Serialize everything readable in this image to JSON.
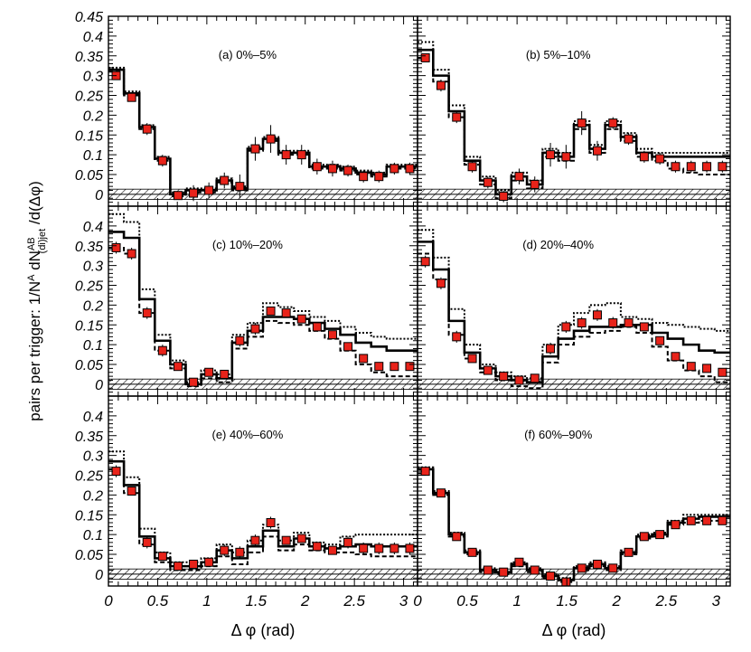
{
  "figure": {
    "ylabel_prefix": "pairs per trigger: 1/N",
    "ylabel_mid": " dN",
    "ylabel_suffix": " /d(Δφ)",
    "ylabel_sup_a": "A",
    "ylabel_sup_ab": "AB",
    "ylabel_sub": "(di)jet",
    "xlabel": "Δ φ (rad)",
    "colors": {
      "marker": "#e8231a",
      "line": "#000000",
      "band": "#000000"
    }
  },
  "chart_data": [
    {
      "type": "scatter",
      "title": "(a) 0%–5%",
      "xlim": [
        0,
        3.1416
      ],
      "ylim": [
        -0.03,
        0.45
      ],
      "grid": false,
      "xticks": [
        "0",
        "0.5",
        "1",
        "1.5",
        "2",
        "2.5",
        "3"
      ],
      "yticks": [
        "0",
        "0.05",
        "0.1",
        "0.15",
        "0.2",
        "0.25",
        "0.3",
        "0.35",
        "0.4",
        "0.45"
      ],
      "x": [
        0.0785,
        0.2356,
        0.3927,
        0.5498,
        0.7069,
        0.864,
        1.0211,
        1.1781,
        1.3352,
        1.4923,
        1.6494,
        1.8065,
        1.9635,
        2.1206,
        2.2777,
        2.4348,
        2.5919,
        2.749,
        2.9061,
        3.0631
      ],
      "data": [
        0.3,
        0.245,
        0.165,
        0.085,
        -0.003,
        0.003,
        0.01,
        0.035,
        0.02,
        0.115,
        0.14,
        0.1,
        0.1,
        0.07,
        0.065,
        0.06,
        0.045,
        0.045,
        0.065,
        0.065
      ],
      "err": [
        0.01,
        0.01,
        0.015,
        0.015,
        0.01,
        0.02,
        0.02,
        0.02,
        0.03,
        0.03,
        0.035,
        0.025,
        0.025,
        0.02,
        0.02,
        0.015,
        0.015,
        0.015,
        0.015,
        0.015
      ],
      "model": [
        0.315,
        0.255,
        0.17,
        0.09,
        0.0,
        0.01,
        0.01,
        0.035,
        0.015,
        0.115,
        0.14,
        0.105,
        0.105,
        0.07,
        0.07,
        0.065,
        0.055,
        0.05,
        0.07,
        0.07
      ],
      "band_hi": [
        0.32,
        0.26,
        0.175,
        0.095,
        0.005,
        0.015,
        0.015,
        0.04,
        0.02,
        0.12,
        0.145,
        0.11,
        0.11,
        0.075,
        0.075,
        0.07,
        0.06,
        0.055,
        0.075,
        0.075
      ],
      "band_lo": [
        0.31,
        0.25,
        0.165,
        0.085,
        -0.005,
        0.005,
        0.005,
        0.03,
        0.01,
        0.11,
        0.135,
        0.1,
        0.1,
        0.065,
        0.065,
        0.06,
        0.05,
        0.045,
        0.065,
        0.065
      ]
    },
    {
      "type": "scatter",
      "title": "(b) 5%–10%",
      "xlim": [
        0,
        3.1416
      ],
      "ylim": [
        -0.03,
        0.45
      ],
      "grid": false,
      "xticks": [
        "0",
        "0.5",
        "1",
        "1.5",
        "2",
        "2.5",
        "3"
      ],
      "yticks": [],
      "x": [
        0.0785,
        0.2356,
        0.3927,
        0.5498,
        0.7069,
        0.864,
        1.0211,
        1.1781,
        1.3352,
        1.4923,
        1.6494,
        1.8065,
        1.9635,
        2.1206,
        2.2777,
        2.4348,
        2.5919,
        2.749,
        2.9061,
        3.0631
      ],
      "data": [
        0.345,
        0.275,
        0.195,
        0.07,
        0.03,
        -0.005,
        0.045,
        0.025,
        0.1,
        0.095,
        0.18,
        0.11,
        0.18,
        0.14,
        0.095,
        0.09,
        0.07,
        0.07,
        0.07,
        0.07
      ],
      "err": [
        0.01,
        0.015,
        0.015,
        0.015,
        0.015,
        0.015,
        0.02,
        0.02,
        0.03,
        0.03,
        0.03,
        0.025,
        0.015,
        0.015,
        0.015,
        0.015,
        0.015,
        0.015,
        0.015,
        0.015
      ],
      "model": [
        0.365,
        0.3,
        0.21,
        0.085,
        0.035,
        0.0,
        0.045,
        0.025,
        0.105,
        0.095,
        0.175,
        0.115,
        0.175,
        0.145,
        0.105,
        0.095,
        0.095,
        0.095,
        0.095,
        0.095
      ],
      "band_hi": [
        0.385,
        0.315,
        0.225,
        0.095,
        0.045,
        0.01,
        0.055,
        0.035,
        0.115,
        0.105,
        0.185,
        0.125,
        0.185,
        0.155,
        0.115,
        0.105,
        0.105,
        0.105,
        0.105,
        0.105
      ],
      "band_lo": [
        0.345,
        0.285,
        0.195,
        0.075,
        0.025,
        -0.01,
        0.035,
        0.015,
        0.095,
        0.085,
        0.165,
        0.105,
        0.165,
        0.135,
        0.095,
        0.085,
        0.065,
        0.055,
        0.05,
        0.05
      ]
    },
    {
      "type": "scatter",
      "title": "(c) 10%–20%",
      "xlim": [
        0,
        3.1416
      ],
      "ylim": [
        -0.03,
        0.45
      ],
      "grid": false,
      "xticks": [
        "0",
        "0.5",
        "1",
        "1.5",
        "2",
        "2.5",
        "3"
      ],
      "yticks": [
        "0",
        "0.05",
        "0.1",
        "0.15",
        "0.2",
        "0.25",
        "0.3",
        "0.35",
        "0.4"
      ],
      "x": [
        0.0785,
        0.2356,
        0.3927,
        0.5498,
        0.7069,
        0.864,
        1.0211,
        1.1781,
        1.3352,
        1.4923,
        1.6494,
        1.8065,
        1.9635,
        2.1206,
        2.2777,
        2.4348,
        2.5919,
        2.749,
        2.9061,
        3.0631
      ],
      "data": [
        0.345,
        0.33,
        0.18,
        0.085,
        0.045,
        0.005,
        0.03,
        0.025,
        0.11,
        0.14,
        0.185,
        0.18,
        0.165,
        0.145,
        0.125,
        0.095,
        0.065,
        0.045,
        0.045,
        0.045
      ],
      "err": [
        0.015,
        0.015,
        0.015,
        0.015,
        0.01,
        0.01,
        0.01,
        0.01,
        0.015,
        0.015,
        0.01,
        0.01,
        0.01,
        0.01,
        0.01,
        0.01,
        0.01,
        0.01,
        0.01,
        0.01
      ],
      "model": [
        0.385,
        0.37,
        0.215,
        0.11,
        0.05,
        0.0,
        0.025,
        0.015,
        0.105,
        0.135,
        0.17,
        0.17,
        0.165,
        0.155,
        0.14,
        0.125,
        0.105,
        0.095,
        0.085,
        0.085
      ],
      "band_hi": [
        0.43,
        0.41,
        0.24,
        0.125,
        0.06,
        0.005,
        0.035,
        0.025,
        0.125,
        0.155,
        0.205,
        0.195,
        0.185,
        0.17,
        0.16,
        0.145,
        0.13,
        0.12,
        0.115,
        0.115
      ],
      "band_lo": [
        0.345,
        0.33,
        0.18,
        0.085,
        0.04,
        -0.005,
        0.015,
        0.005,
        0.09,
        0.12,
        0.16,
        0.155,
        0.15,
        0.135,
        0.115,
        0.085,
        0.05,
        0.03,
        0.02,
        0.02
      ]
    },
    {
      "type": "scatter",
      "title": "(d) 20%–40%",
      "xlim": [
        0,
        3.1416
      ],
      "ylim": [
        -0.03,
        0.45
      ],
      "grid": false,
      "xticks": [
        "0",
        "0.5",
        "1",
        "1.5",
        "2",
        "2.5",
        "3"
      ],
      "yticks": [],
      "x": [
        0.0785,
        0.2356,
        0.3927,
        0.5498,
        0.7069,
        0.864,
        1.0211,
        1.1781,
        1.3352,
        1.4923,
        1.6494,
        1.8065,
        1.9635,
        2.1206,
        2.2777,
        2.4348,
        2.5919,
        2.749,
        2.9061,
        3.0631
      ],
      "data": [
        0.31,
        0.255,
        0.12,
        0.065,
        0.035,
        0.02,
        0.01,
        0.015,
        0.09,
        0.145,
        0.155,
        0.175,
        0.155,
        0.155,
        0.145,
        0.11,
        0.07,
        0.045,
        0.04,
        0.03
      ],
      "err": [
        0.015,
        0.015,
        0.015,
        0.01,
        0.01,
        0.01,
        0.01,
        0.01,
        0.015,
        0.015,
        0.015,
        0.015,
        0.015,
        0.01,
        0.01,
        0.01,
        0.01,
        0.01,
        0.01,
        0.01
      ],
      "model": [
        0.36,
        0.29,
        0.16,
        0.08,
        0.04,
        0.02,
        0.01,
        0.005,
        0.07,
        0.115,
        0.135,
        0.145,
        0.145,
        0.15,
        0.15,
        0.13,
        0.115,
        0.1,
        0.085,
        0.08
      ],
      "band_hi": [
        0.39,
        0.32,
        0.19,
        0.1,
        0.05,
        0.03,
        0.02,
        0.015,
        0.1,
        0.15,
        0.18,
        0.2,
        0.205,
        0.17,
        0.165,
        0.155,
        0.15,
        0.145,
        0.14,
        0.135
      ],
      "band_lo": [
        0.33,
        0.265,
        0.125,
        0.065,
        0.03,
        0.01,
        -0.005,
        -0.01,
        0.055,
        0.1,
        0.12,
        0.13,
        0.135,
        0.145,
        0.13,
        0.095,
        0.06,
        0.035,
        0.02,
        0.005
      ]
    },
    {
      "type": "scatter",
      "title": "(e) 40%–60%",
      "xlim": [
        0,
        3.1416
      ],
      "ylim": [
        -0.03,
        0.45
      ],
      "grid": false,
      "xticks": [
        "0",
        "0.5",
        "1",
        "1.5",
        "2",
        "2.5",
        "3"
      ],
      "yticks": [
        "0",
        "0.05",
        "0.1",
        "0.15",
        "0.2",
        "0.25",
        "0.3",
        "0.35",
        "0.4"
      ],
      "x": [
        0.0785,
        0.2356,
        0.3927,
        0.5498,
        0.7069,
        0.864,
        1.0211,
        1.1781,
        1.3352,
        1.4923,
        1.6494,
        1.8065,
        1.9635,
        2.1206,
        2.2777,
        2.4348,
        2.5919,
        2.749,
        2.9061,
        3.0631
      ],
      "data": [
        0.26,
        0.21,
        0.08,
        0.045,
        0.02,
        0.025,
        0.03,
        0.06,
        0.055,
        0.085,
        0.13,
        0.085,
        0.09,
        0.07,
        0.06,
        0.08,
        0.065,
        0.065,
        0.065,
        0.065
      ],
      "err": [
        0.015,
        0.01,
        0.015,
        0.01,
        0.01,
        0.01,
        0.01,
        0.015,
        0.015,
        0.015,
        0.015,
        0.01,
        0.01,
        0.01,
        0.01,
        0.015,
        0.015,
        0.015,
        0.015,
        0.015
      ],
      "model": [
        0.285,
        0.225,
        0.095,
        0.04,
        0.02,
        0.02,
        0.03,
        0.06,
        0.04,
        0.07,
        0.11,
        0.07,
        0.09,
        0.07,
        0.065,
        0.07,
        0.075,
        0.07,
        0.07,
        0.07
      ],
      "band_hi": [
        0.31,
        0.245,
        0.115,
        0.055,
        0.03,
        0.03,
        0.04,
        0.075,
        0.055,
        0.085,
        0.125,
        0.085,
        0.105,
        0.08,
        0.075,
        0.095,
        0.1,
        0.1,
        0.1,
        0.1
      ],
      "band_lo": [
        0.265,
        0.205,
        0.075,
        0.03,
        0.01,
        0.01,
        0.02,
        0.045,
        0.025,
        0.055,
        0.095,
        0.06,
        0.075,
        0.06,
        0.055,
        0.055,
        0.05,
        0.045,
        0.045,
        0.045
      ]
    },
    {
      "type": "scatter",
      "title": "(f) 60%–90%",
      "xlim": [
        0,
        3.1416
      ],
      "ylim": [
        -0.03,
        0.45
      ],
      "grid": false,
      "xticks": [
        "0",
        "0.5",
        "1",
        "1.5",
        "2",
        "2.5",
        "3"
      ],
      "yticks": [],
      "x": [
        0.0785,
        0.2356,
        0.3927,
        0.5498,
        0.7069,
        0.864,
        1.0211,
        1.1781,
        1.3352,
        1.4923,
        1.6494,
        1.8065,
        1.9635,
        2.1206,
        2.2777,
        2.4348,
        2.5919,
        2.749,
        2.9061,
        3.0631
      ],
      "data": [
        0.26,
        0.205,
        0.095,
        0.055,
        0.01,
        0.005,
        0.03,
        0.01,
        -0.005,
        -0.02,
        0.015,
        0.025,
        0.015,
        0.055,
        0.095,
        0.1,
        0.125,
        0.135,
        0.135,
        0.135
      ],
      "err": [
        0.01,
        0.01,
        0.01,
        0.01,
        0.01,
        0.01,
        0.01,
        0.01,
        0.01,
        0.01,
        0.01,
        0.01,
        0.01,
        0.01,
        0.01,
        0.01,
        0.01,
        0.01,
        0.01,
        0.01
      ],
      "model": [
        0.265,
        0.205,
        0.1,
        0.055,
        0.01,
        0.005,
        0.025,
        0.01,
        -0.005,
        -0.015,
        0.015,
        0.025,
        0.015,
        0.055,
        0.095,
        0.1,
        0.13,
        0.14,
        0.145,
        0.145
      ],
      "band_hi": [
        0.27,
        0.21,
        0.105,
        0.06,
        0.015,
        0.01,
        0.03,
        0.015,
        0.0,
        -0.01,
        0.02,
        0.03,
        0.02,
        0.06,
        0.1,
        0.105,
        0.135,
        0.15,
        0.15,
        0.15
      ],
      "band_lo": [
        0.255,
        0.2,
        0.095,
        0.05,
        0.005,
        0.0,
        0.02,
        0.005,
        -0.01,
        -0.02,
        0.01,
        0.02,
        0.01,
        0.05,
        0.09,
        0.095,
        0.125,
        0.13,
        0.135,
        0.135
      ]
    }
  ]
}
